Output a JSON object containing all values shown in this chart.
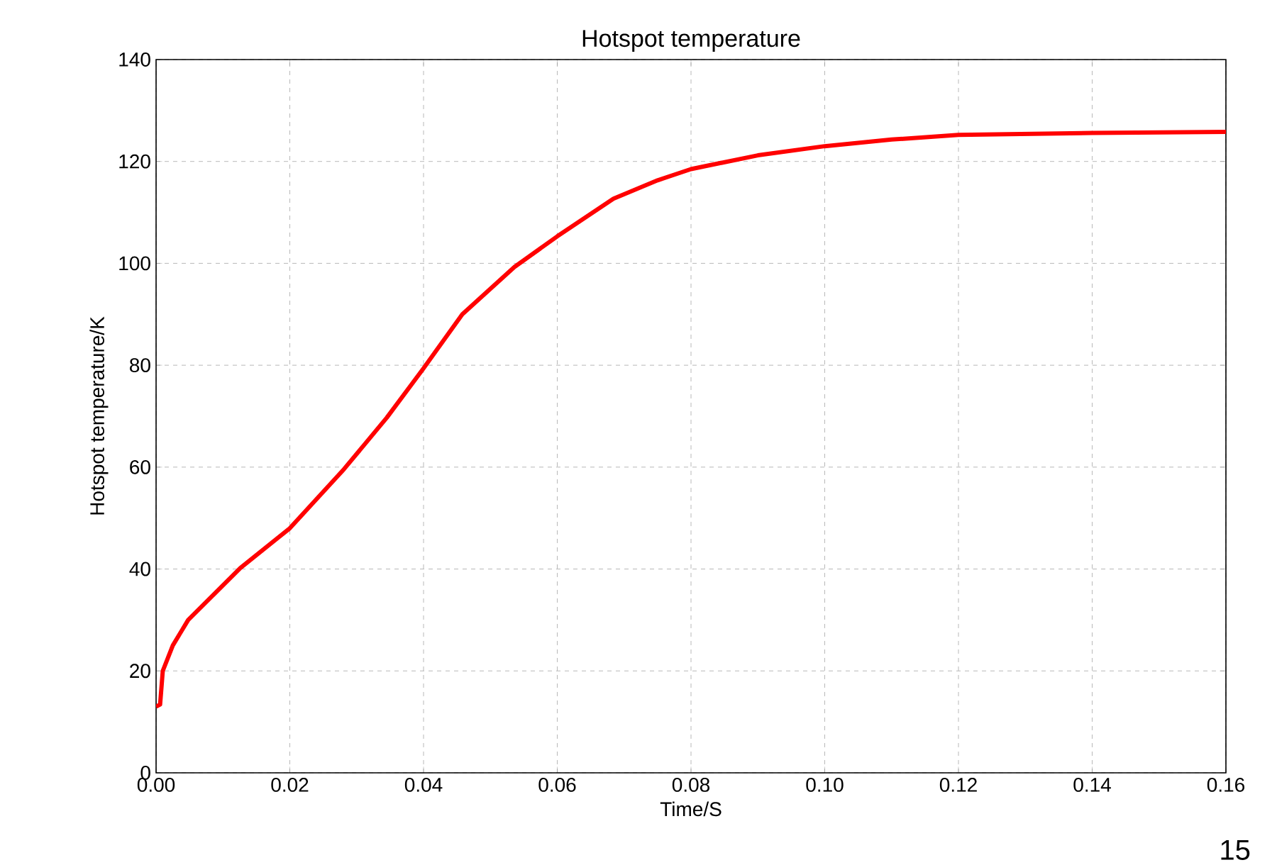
{
  "chart_data": {
    "type": "line",
    "title": "Hotspot temperature",
    "xlabel": "Time/S",
    "ylabel": "Hotspot temperature/K",
    "x": [
      0,
      0.0006,
      0.001,
      0.0025,
      0.0048,
      0.0126,
      0.02,
      0.0281,
      0.0345,
      0.04,
      0.0458,
      0.0536,
      0.06,
      0.0684,
      0.075,
      0.08,
      0.09,
      0.1,
      0.11,
      0.12,
      0.14,
      0.16
    ],
    "series": [
      {
        "color": "#ff0000",
        "values": [
          13,
          13.4,
          20,
          25,
          30,
          40.2,
          48,
          59.6,
          69.7,
          79.4,
          90,
          99.3,
          105.3,
          112.7,
          116.3,
          118.5,
          121.2,
          123,
          124.3,
          125.2,
          125.6,
          125.8
        ]
      }
    ],
    "xlim": [
      0,
      0.16
    ],
    "ylim": [
      0,
      140
    ],
    "xticks": [
      {
        "value": 0,
        "label": "0.00"
      },
      0.02,
      0.04,
      0.06,
      0.08,
      {
        "value": 0.1,
        "label": "0.10"
      },
      0.12,
      0.14,
      0.16
    ],
    "yticks": [
      0,
      20,
      40,
      60,
      80,
      100,
      120,
      140
    ],
    "grid": true,
    "marker": "none",
    "line_style": "solid",
    "annotations": [
      "15"
    ]
  }
}
